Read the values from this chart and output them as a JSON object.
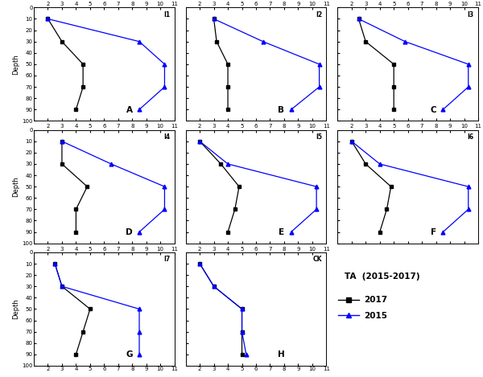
{
  "subplots": [
    {
      "label": "I1",
      "letter": "A",
      "black_x": [
        2.0,
        3.0,
        4.5,
        4.5,
        4.0
      ],
      "black_y": [
        10,
        30,
        50,
        70,
        90
      ],
      "blue_x": [
        2.0,
        8.5,
        10.3,
        10.3,
        8.5
      ],
      "blue_y": [
        10,
        30,
        50,
        70,
        90
      ]
    },
    {
      "label": "I2",
      "letter": "B",
      "black_x": [
        3.0,
        3.2,
        4.0,
        4.0,
        4.0
      ],
      "black_y": [
        10,
        30,
        50,
        70,
        90
      ],
      "blue_x": [
        3.0,
        6.5,
        10.5,
        10.5,
        8.5
      ],
      "blue_y": [
        10,
        30,
        50,
        70,
        90
      ]
    },
    {
      "label": "I3",
      "letter": "C",
      "black_x": [
        2.5,
        3.0,
        5.0,
        5.0,
        5.0
      ],
      "black_y": [
        10,
        30,
        50,
        70,
        90
      ],
      "blue_x": [
        2.5,
        5.8,
        10.3,
        10.3,
        8.5
      ],
      "blue_y": [
        10,
        30,
        50,
        70,
        90
      ]
    },
    {
      "label": "I4",
      "letter": "D",
      "black_x": [
        3.0,
        3.0,
        4.8,
        4.0,
        4.0
      ],
      "black_y": [
        10,
        30,
        50,
        70,
        90
      ],
      "blue_x": [
        3.0,
        6.5,
        10.3,
        10.3,
        8.5
      ],
      "blue_y": [
        10,
        30,
        50,
        70,
        90
      ]
    },
    {
      "label": "I5",
      "letter": "E",
      "black_x": [
        2.0,
        3.5,
        4.8,
        4.5,
        4.0
      ],
      "black_y": [
        10,
        30,
        50,
        70,
        90
      ],
      "blue_x": [
        2.0,
        4.0,
        10.3,
        10.3,
        8.5
      ],
      "blue_y": [
        10,
        30,
        50,
        70,
        90
      ]
    },
    {
      "label": "I6",
      "letter": "F",
      "black_x": [
        2.0,
        3.0,
        4.8,
        4.5,
        4.0
      ],
      "black_y": [
        10,
        30,
        50,
        70,
        90
      ],
      "blue_x": [
        2.0,
        4.0,
        10.3,
        10.3,
        8.5
      ],
      "blue_y": [
        10,
        30,
        50,
        70,
        90
      ]
    },
    {
      "label": "I7",
      "letter": "G",
      "black_x": [
        2.5,
        3.0,
        5.0,
        4.5,
        4.0
      ],
      "black_y": [
        10,
        30,
        50,
        70,
        90
      ],
      "blue_x": [
        2.5,
        3.0,
        8.5,
        8.5,
        8.5
      ],
      "blue_y": [
        10,
        30,
        50,
        70,
        90
      ]
    },
    {
      "label": "CK",
      "letter": "H",
      "black_x": [
        2.0,
        3.0,
        5.0,
        5.0,
        5.0
      ],
      "black_y": [
        10,
        30,
        50,
        70,
        90
      ],
      "blue_x": [
        2.0,
        3.0,
        5.0,
        5.0,
        5.3
      ],
      "blue_y": [
        10,
        30,
        50,
        70,
        90
      ]
    }
  ],
  "xlim": [
    1,
    11
  ],
  "ylim": [
    100,
    0
  ],
  "xticks": [
    2,
    3,
    4,
    5,
    6,
    7,
    8,
    9,
    10,
    11
  ],
  "yticks": [
    0,
    10,
    20,
    30,
    40,
    50,
    60,
    70,
    80,
    90,
    100
  ],
  "black_color": "#000000",
  "blue_color": "#0000ff",
  "legend_title": "TA  (2015-2017)",
  "legend_2017": "2017",
  "legend_2015": "2015",
  "ylabel": "Depth"
}
